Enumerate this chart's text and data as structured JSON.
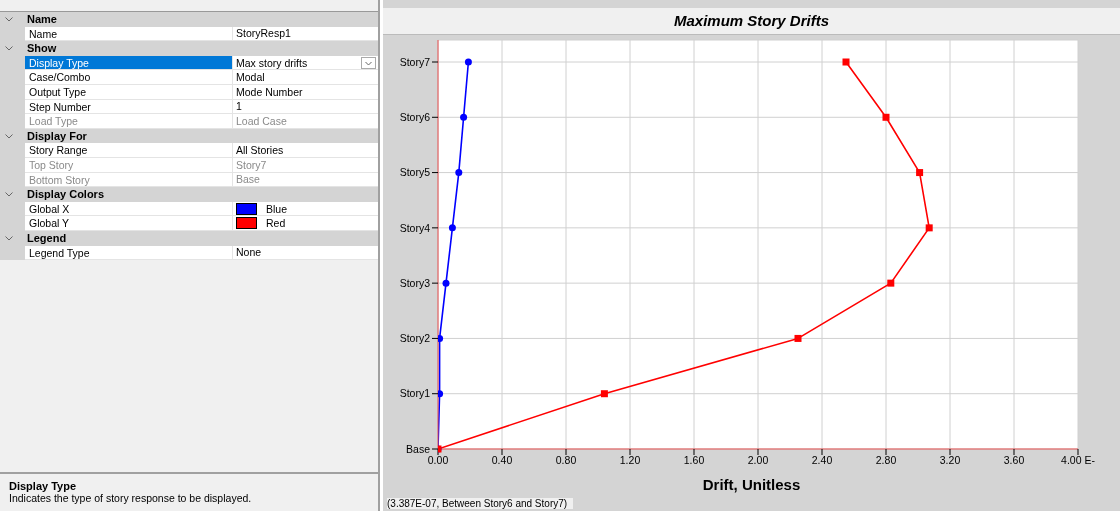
{
  "chart_data": [
    {
      "type": "other",
      "annotations": [
        "Name",
        "Name",
        "StoryResp1",
        "Show",
        "Display Type",
        "Max story drifts",
        "Case/Combo",
        "Modal",
        "Output Type",
        "Mode Number",
        "Step Number",
        "1",
        "Load Type",
        "Load Case",
        "Display For",
        "Story Range",
        "All Stories",
        "Top Story",
        "Story7",
        "Bottom Story",
        "Base",
        "Display Colors",
        "Global X",
        "Blue",
        "Global Y",
        "Red",
        "Legend",
        "Legend Type",
        "None",
        "Display Type",
        "Indicates the type of story response to be displayed."
      ]
    },
    {
      "type": "line",
      "orientation": "horizontal",
      "title": "Maximum Story Drifts",
      "xlabel": "Drift, Unitless",
      "categories": [
        "Story7",
        "Story6",
        "Story5",
        "Story4",
        "Story3",
        "Story2",
        "Story1",
        "Base"
      ],
      "series": [
        {
          "color": "#0000ff",
          "marker": "circle",
          "values": [
            0.19,
            0.16,
            0.13,
            0.09,
            0.05,
            0.01,
            0.01,
            0
          ]
        },
        {
          "color": "#ff0000",
          "marker": "square",
          "values": [
            2.55,
            2.8,
            3.01,
            3.07,
            2.83,
            2.25,
            1.04,
            0
          ]
        }
      ],
      "xlim": [
        0,
        4
      ],
      "xticks": [
        {
          "value": 0,
          "label": "0.00"
        },
        {
          "value": 0.4,
          "label": "0.40"
        },
        {
          "value": 0.8,
          "label": "0.80"
        },
        {
          "value": 1.2,
          "label": "1.20"
        },
        {
          "value": 1.6,
          "label": "1.60"
        },
        {
          "value": 2,
          "label": "2.00"
        },
        {
          "value": 2.4,
          "label": "2.40"
        },
        {
          "value": 2.8,
          "label": "2.80"
        },
        {
          "value": 3.2,
          "label": "3.20"
        },
        {
          "value": 3.6,
          "label": "3.60"
        },
        {
          "value": 4,
          "label": "4.00 E-"
        }
      ],
      "grid": true,
      "annotations": [
        "(3.387E-07, Between Story6 and Story7)"
      ]
    }
  ]
}
